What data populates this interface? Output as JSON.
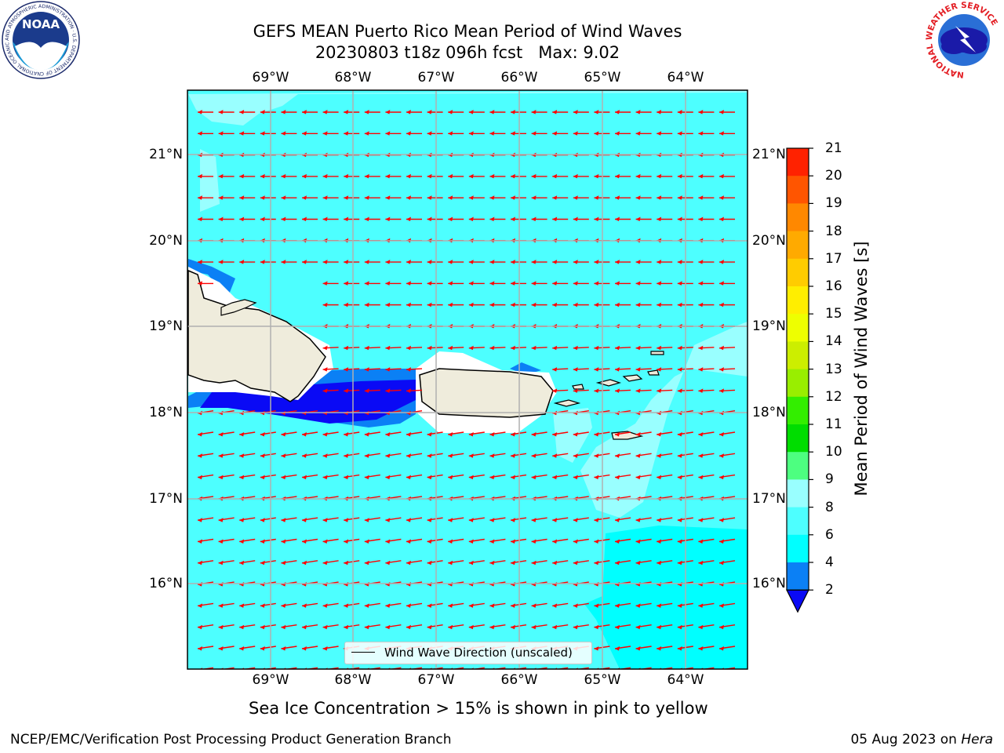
{
  "header": {
    "title_line1": "GEFS MEAN Puerto Rico Mean Period of Wind Waves",
    "title_line2": "20230803 t18z 096h fcst   Max: 9.02"
  },
  "logos": {
    "left": {
      "text": "NOAA",
      "ring_text": "NATIONAL OCEANIC AND ATMOSPHERIC ADMINISTRATION · U.S. DEPARTMENT OF COMMERCE"
    },
    "right": {
      "ring_text": "NATIONAL WEATHER SERVICE"
    }
  },
  "map": {
    "lon_labels": [
      "69°W",
      "68°W",
      "67°W",
      "66°W",
      "65°W",
      "64°W"
    ],
    "lat_labels": [
      "21°N",
      "20°N",
      "19°N",
      "18°N",
      "17°N",
      "16°N"
    ],
    "legend_label": "Wind Wave Direction (unscaled)",
    "arrow_color": "#ff0000",
    "land_color": "#efecdc"
  },
  "colorbar": {
    "label": "Mean Period of Wind Waves [s]",
    "ticks": [
      "2",
      "4",
      "6",
      "8",
      "9",
      "10",
      "11",
      "12",
      "13",
      "14",
      "15",
      "16",
      "17",
      "18",
      "19",
      "20",
      "21"
    ],
    "colors": [
      "#0a0af5",
      "#0b80f5",
      "#00ffff",
      "#4dffff",
      "#99ffff",
      "#4dff80",
      "#00dd00",
      "#33ee00",
      "#99ee00",
      "#ccee00",
      "#eeff00",
      "#ffee00",
      "#ffcc00",
      "#ffaa00",
      "#ff8800",
      "#ff5500",
      "#ff2200",
      "#ff0000"
    ]
  },
  "caption": "Sea Ice Concentration > 15% is shown in pink to yellow",
  "footer": {
    "left": "NCEP/EMC/Verification Post Processing Product Generation Branch",
    "right_prefix": "05 Aug 2023 on ",
    "right_host": "Hera"
  }
}
